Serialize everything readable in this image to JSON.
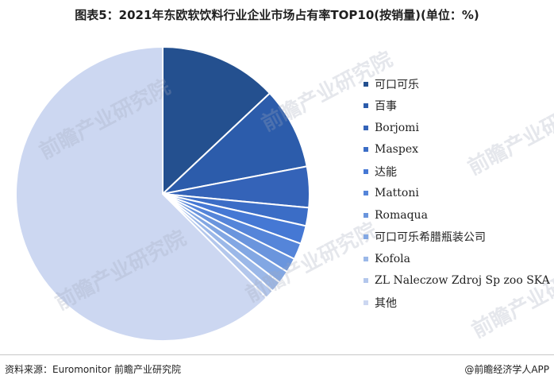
{
  "title": "图表5：2021年东欧软饮料行业企业市场占有率TOP10(按销量)(单位：%)",
  "watermark": "前瞻产业研究院",
  "footer": {
    "source": "资料来源：Euromonitor 前瞻产业研究院",
    "credit": "@前瞻经济学人APP"
  },
  "chart_data": {
    "type": "pie",
    "title": "图表5：2021年东欧软饮料行业企业市场占有率TOP10(按销量)(单位：%)",
    "unit": "%",
    "start_angle": "12 o'clock",
    "direction": "clockwise",
    "legend_position": "right",
    "slices": [
      {
        "label": "可口可乐",
        "value": 13.0,
        "color": "#24508f"
      },
      {
        "label": "百事",
        "value": 9.0,
        "color": "#2c5cab"
      },
      {
        "label": "Borjomi",
        "value": 4.5,
        "color": "#3463b8"
      },
      {
        "label": "Maspex",
        "value": 2.0,
        "color": "#3b6dc6"
      },
      {
        "label": "达能",
        "value": 2.0,
        "color": "#4578d4"
      },
      {
        "label": "Mattoni",
        "value": 1.8,
        "color": "#5585d9"
      },
      {
        "label": "Romaqua",
        "value": 1.6,
        "color": "#6a95dd"
      },
      {
        "label": "可口可乐希腊瓶装公司",
        "value": 1.4,
        "color": "#82a7e3"
      },
      {
        "label": "Kofola",
        "value": 1.2,
        "color": "#9bb8e8"
      },
      {
        "label": "ZL Naleczow Zdroj Sp zoo SKA",
        "value": 1.0,
        "color": "#b3c7ec"
      },
      {
        "label": "其他",
        "value": 62.5,
        "color": "#ccd7f1"
      }
    ]
  }
}
